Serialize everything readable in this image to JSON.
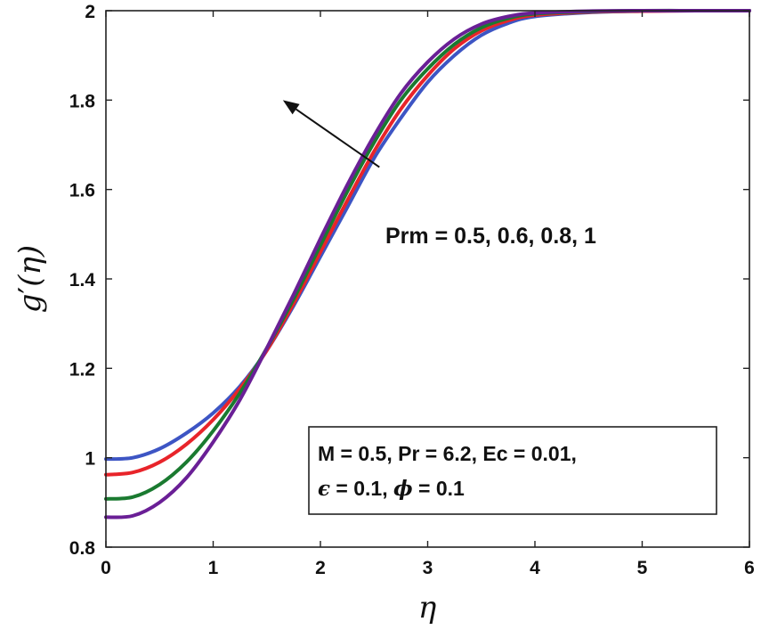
{
  "chart_data": {
    "type": "line",
    "title": "",
    "xlabel": "η",
    "ylabel_main": "g",
    "ylabel_prime": "′",
    "ylabel_arg": "(η)",
    "xlim": [
      0,
      6
    ],
    "ylim": [
      0.8,
      2
    ],
    "grid": false,
    "x_ticks": [
      0,
      1,
      2,
      3,
      4,
      5,
      6
    ],
    "x_tick_labels": [
      "0",
      "1",
      "2",
      "3",
      "4",
      "5",
      "6"
    ],
    "y_ticks": [
      0.8,
      1,
      1.2,
      1.4,
      1.6,
      1.8,
      2
    ],
    "y_tick_labels": [
      "0.8",
      "1",
      "1.2",
      "1.4",
      "1.6",
      "1.8",
      "2"
    ],
    "x": [
      0,
      0.25,
      0.5,
      0.75,
      1,
      1.25,
      1.5,
      1.75,
      2,
      2.25,
      2.5,
      2.75,
      3,
      3.25,
      3.5,
      3.75,
      4,
      4.5,
      5,
      5.5,
      6
    ],
    "series": [
      {
        "name": "Prm = 0.5",
        "color": "#3d55c4",
        "values": [
          0.997,
          1.0,
          1.02,
          1.055,
          1.1,
          1.16,
          1.24,
          1.34,
          1.45,
          1.56,
          1.67,
          1.76,
          1.84,
          1.9,
          1.945,
          1.972,
          1.987,
          1.996,
          1.999,
          2.0,
          2.0
        ]
      },
      {
        "name": "Prm = 0.6",
        "color": "#e8242a",
        "values": [
          0.962,
          0.967,
          0.99,
          1.03,
          1.085,
          1.155,
          1.24,
          1.345,
          1.46,
          1.575,
          1.685,
          1.78,
          1.855,
          1.915,
          1.955,
          1.978,
          1.99,
          1.997,
          1.999,
          2.0,
          2.0
        ]
      },
      {
        "name": "Prm = 0.8",
        "color": "#1a7a30",
        "values": [
          0.908,
          0.912,
          0.94,
          0.99,
          1.06,
          1.145,
          1.245,
          1.355,
          1.475,
          1.595,
          1.705,
          1.8,
          1.87,
          1.925,
          1.962,
          1.983,
          1.993,
          1.998,
          2.0,
          2.0,
          2.0
        ]
      },
      {
        "name": "Prm = 1",
        "color": "#6a1f96",
        "values": [
          0.867,
          0.87,
          0.9,
          0.955,
          1.035,
          1.13,
          1.245,
          1.365,
          1.49,
          1.61,
          1.72,
          1.815,
          1.885,
          1.937,
          1.97,
          1.987,
          1.995,
          1.999,
          2.0,
          2.0,
          2.0
        ]
      }
    ],
    "annotation": {
      "text": "Prm = 0.5, 0.6, 0.8, 1",
      "arrow_from": [
        2.55,
        1.65
      ],
      "arrow_to": [
        1.65,
        1.8
      ]
    },
    "legend": {
      "placement": "bottom-right",
      "line1": "M = 0.5, Pr = 6.2, Ec = 0.01,",
      "line2_sym_a": "ϵ",
      "line2_mid": " = 0.1, ",
      "line2_sym_b": "ϕ",
      "line2_end": " = 0.1"
    }
  }
}
